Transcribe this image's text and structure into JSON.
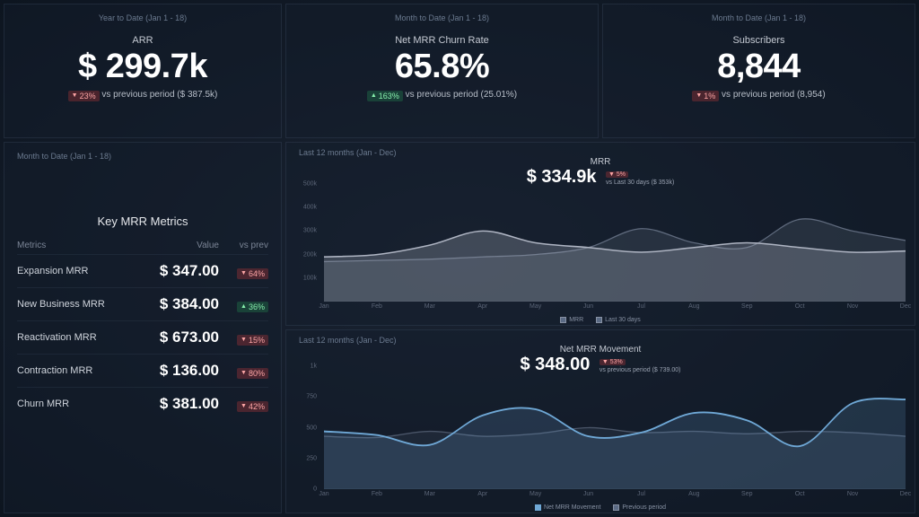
{
  "colors": {
    "bg_inner": "#1a2332",
    "bg_outer": "#0d1520",
    "card_border": "#3c4b5f",
    "text_muted": "#6b7a8f",
    "text_dim": "#9aa3b2",
    "text": "#e5e7eb",
    "down_bg": "rgba(220,60,60,0.28)",
    "down_fg": "#fca5a5",
    "up_bg": "rgba(40,160,90,0.28)",
    "up_fg": "#86efac",
    "series_mrr": "#aeb4c2",
    "series_last30": "#5f6a7d",
    "series_movement": "#6fa8d6",
    "series_prev": "#4a5568"
  },
  "kpi": {
    "arr": {
      "period": "Year to Date (Jan 1 - 18)",
      "title": "ARR",
      "value": "$ 299.7k",
      "change": "23%",
      "direction": "down",
      "compare": "vs previous period ($ 387.5k)"
    },
    "churn": {
      "period": "Month to Date (Jan 1 - 18)",
      "title": "Net MRR Churn Rate",
      "value": "65.8%",
      "change": "163%",
      "direction": "up",
      "compare": "vs previous period (25.01%)"
    },
    "subs": {
      "period": "Month to Date (Jan 1 - 18)",
      "title": "Subscribers",
      "value": "8,844",
      "change": "1%",
      "direction": "down",
      "compare": "vs previous period (8,954)"
    }
  },
  "metrics": {
    "period": "Month to Date (Jan 1 - 18)",
    "title": "Key MRR Metrics",
    "headers": {
      "metric": "Metrics",
      "value": "Value",
      "prev": "vs prev"
    },
    "rows": [
      {
        "label": "Expansion MRR",
        "value": "$ 347.00",
        "change": "64%",
        "direction": "down"
      },
      {
        "label": "New Business MRR",
        "value": "$ 384.00",
        "change": "36%",
        "direction": "up"
      },
      {
        "label": "Reactivation MRR",
        "value": "$ 673.00",
        "change": "15%",
        "direction": "down"
      },
      {
        "label": "Contraction MRR",
        "value": "$ 136.00",
        "change": "80%",
        "direction": "down"
      },
      {
        "label": "Churn MRR",
        "value": "$ 381.00",
        "change": "42%",
        "direction": "down"
      }
    ]
  },
  "chart_mrr": {
    "period": "Last 12 months (Jan - Dec)",
    "title": "MRR",
    "value": "$ 334.9k",
    "change": "5%",
    "direction": "down",
    "compare": "vs Last 30 days ($ 353k)",
    "ylim": [
      0,
      500
    ],
    "yticks": [
      100,
      200,
      300,
      400,
      500
    ],
    "ytick_labels": [
      "100k",
      "200k",
      "300k",
      "400k",
      "500k"
    ],
    "xlabels": [
      "Jan",
      "Feb",
      "Mar",
      "Apr",
      "May",
      "Jun",
      "Jul",
      "Aug",
      "Sep",
      "Oct",
      "Nov",
      "Dec"
    ],
    "series": {
      "mrr": [
        190,
        200,
        240,
        300,
        250,
        230,
        210,
        230,
        250,
        230,
        210,
        215
      ],
      "last30": [
        170,
        175,
        180,
        190,
        200,
        230,
        310,
        250,
        230,
        350,
        300,
        260
      ]
    },
    "legend": [
      {
        "label": "MRR",
        "checked": true
      },
      {
        "label": "Last 30 days",
        "checked": true
      }
    ]
  },
  "chart_movement": {
    "period": "Last 12 months (Jan - Dec)",
    "title": "Net MRR Movement",
    "value": "$ 348.00",
    "change": "53%",
    "direction": "down",
    "compare": "vs previous period ($ 739.00)",
    "ylim": [
      0,
      1000
    ],
    "yticks": [
      0,
      250,
      500,
      750,
      1000
    ],
    "ytick_labels": [
      "0",
      "250",
      "500",
      "750",
      "1k"
    ],
    "xlabels": [
      "Jan",
      "Feb",
      "Mar",
      "Apr",
      "May",
      "Jun",
      "Jul",
      "Aug",
      "Sep",
      "Oct",
      "Nov",
      "Dec"
    ],
    "series": {
      "movement": [
        470,
        440,
        360,
        600,
        650,
        430,
        460,
        620,
        560,
        350,
        700,
        730
      ],
      "previous": [
        430,
        420,
        470,
        430,
        450,
        500,
        460,
        470,
        450,
        470,
        460,
        430
      ]
    },
    "legend": [
      {
        "label": "Net MRR Movement",
        "checked": true
      },
      {
        "label": "Previous period",
        "checked": true
      }
    ]
  }
}
